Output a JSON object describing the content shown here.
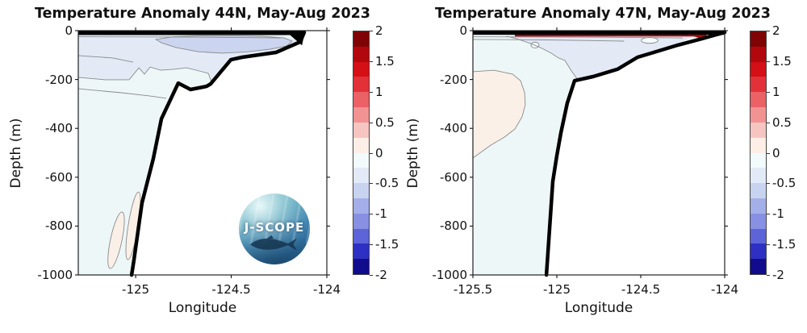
{
  "figure": {
    "background": "#ffffff"
  },
  "colorbar": {
    "tick_labels": [
      "2",
      "1.5",
      "1",
      "0.5",
      "0",
      "-0.5",
      "-1",
      "-1.5",
      "-2"
    ],
    "tick_values": [
      2,
      1.5,
      1,
      0.5,
      0,
      -0.5,
      -1,
      -1.5,
      -2
    ],
    "range": [
      -2,
      2
    ],
    "segment_colors_top_to_bottom": [
      "#7f0405",
      "#b3070e",
      "#d50f16",
      "#e23138",
      "#ea6166",
      "#f29393",
      "#f7c5c1",
      "#fdefe8",
      "#f2fafc",
      "#e2eaf7",
      "#c8d3f0",
      "#a4afe9",
      "#8790e2",
      "#5d64d7",
      "#2d30c2",
      "#110c8c"
    ],
    "outline_color": "#444444"
  },
  "panels": [
    {
      "title": "Temperature Anomaly 44N, May-Aug 2023",
      "xlabel": "Longitude",
      "ylabel": "Depth (m)",
      "logo_text": "J-SCOPE",
      "chart_data": {
        "type": "filled_contour_section",
        "xlim": [
          -125.3,
          -124.0
        ],
        "ylim": [
          -1000,
          0
        ],
        "x_ticks": [
          -125,
          -124.5,
          -124
        ],
        "x_tick_labels": [
          "-125",
          "-124.5",
          "-124"
        ],
        "y_ticks": [
          0,
          -200,
          -400,
          -600,
          -800,
          -1000
        ],
        "y_tick_labels": [
          "0",
          "-200",
          "-400",
          "-600",
          "-800",
          "-1000"
        ],
        "anomaly_units": "degC",
        "contour_interval": 0.25,
        "background_level": "0 to -0.25",
        "background_color": "#eef7f8",
        "contour_line_color": "#8a8a8a",
        "surface_band": {
          "lon_range": [
            -125.3,
            -124.115
          ],
          "depth_range": [
            0,
            -18
          ],
          "color": "#000000"
        },
        "coast_wedge": [
          [
            -124.215,
            -3
          ],
          [
            -124.115,
            -3
          ],
          [
            -124.13,
            -60
          ]
        ],
        "bathymetry_profile": [
          [
            -124.118,
            -7
          ],
          [
            -124.139,
            -46
          ],
          [
            -124.266,
            -89
          ],
          [
            -124.443,
            -109
          ],
          [
            -124.502,
            -119
          ],
          [
            -124.608,
            -218
          ],
          [
            -124.629,
            -228
          ],
          [
            -124.713,
            -241
          ],
          [
            -124.777,
            -215
          ],
          [
            -124.819,
            -284
          ],
          [
            -124.865,
            -360
          ],
          [
            -124.908,
            -525
          ],
          [
            -124.967,
            -706
          ],
          [
            -125.009,
            -941
          ],
          [
            -125.021,
            -1000
          ]
        ],
        "regions": [
          {
            "name": "upper cool band",
            "level": "-0.25 to -0.5",
            "color": "#e3eaf6",
            "outline": false,
            "polygon": [
              [
                -125.3,
                -20
              ],
              [
                -124.232,
                -20
              ],
              [
                -124.139,
                -46
              ],
              [
                -124.266,
                -89
              ],
              [
                -124.443,
                -109
              ],
              [
                -124.502,
                -119
              ],
              [
                -124.603,
                -218
              ],
              [
                -124.62,
                -175
              ],
              [
                -124.667,
                -165
              ],
              [
                -124.734,
                -152
              ],
              [
                -124.802,
                -158
              ],
              [
                -124.869,
                -162
              ],
              [
                -124.924,
                -149
              ],
              [
                -124.954,
                -178
              ],
              [
                -124.983,
                -152
              ],
              [
                -125.034,
                -201
              ],
              [
                -125.161,
                -201
              ],
              [
                -125.3,
                -191
              ]
            ]
          },
          {
            "name": "subsurface cool patch",
            "level": "-0.5 to -0.75",
            "color": "#ccd5ef",
            "outline": true,
            "polygon": [
              [
                -124.895,
                -36
              ],
              [
                -124.802,
                -25
              ],
              [
                -124.654,
                -21
              ],
              [
                -124.486,
                -21
              ],
              [
                -124.338,
                -23
              ],
              [
                -124.224,
                -30
              ],
              [
                -124.182,
                -43
              ],
              [
                -124.211,
                -63
              ],
              [
                -124.296,
                -76
              ],
              [
                -124.422,
                -87
              ],
              [
                -124.549,
                -92
              ],
              [
                -124.675,
                -86
              ],
              [
                -124.789,
                -69
              ],
              [
                -124.865,
                -50
              ]
            ]
          }
        ],
        "ellipses": [
          {
            "name": "deep warm blob west",
            "level": "0 to 0.25",
            "fill": "#faf0e7",
            "center": [
              -125.102,
              -858
            ],
            "rx_lon": 0.03,
            "ry_m": 118,
            "rotate_deg": 12
          },
          {
            "name": "deep warm blob east",
            "level": "0 to 0.25",
            "fill": "#faf0e7",
            "center": [
              -125.013,
              -799
            ],
            "rx_lon": 0.026,
            "ry_m": 140,
            "rotate_deg": 9
          }
        ],
        "contour_lines": [
          {
            "points": [
              [
                -125.3,
                -25
              ],
              [
                -124.739,
                -26
              ],
              [
                -124.24,
                -30
              ]
            ]
          },
          {
            "points": [
              [
                -125.3,
                -102
              ],
              [
                -125.119,
                -112
              ],
              [
                -125.013,
                -129
              ]
            ]
          },
          {
            "points": [
              [
                -125.3,
                -238
              ],
              [
                -125.076,
                -254
              ],
              [
                -124.928,
                -267
              ],
              [
                -124.84,
                -277
              ]
            ]
          },
          {
            "points": [
              [
                -125.3,
                -191
              ],
              [
                -125.161,
                -201
              ],
              [
                -125.034,
                -201
              ],
              [
                -124.983,
                -152
              ],
              [
                -124.954,
                -178
              ],
              [
                -124.924,
                -149
              ],
              [
                -124.869,
                -162
              ],
              [
                -124.802,
                -158
              ],
              [
                -124.734,
                -152
              ],
              [
                -124.667,
                -165
              ],
              [
                -124.62,
                -175
              ],
              [
                -124.603,
                -210
              ]
            ]
          }
        ]
      }
    },
    {
      "title": "Temperature Anomaly 47N, May-Aug 2023",
      "xlabel": "Longitude",
      "ylabel": "Depth (m)",
      "chart_data": {
        "type": "filled_contour_section",
        "xlim": [
          -125.5,
          -124.0
        ],
        "ylim": [
          -1000,
          0
        ],
        "x_ticks": [
          -125.5,
          -125,
          -124.5,
          -124
        ],
        "x_tick_labels": [
          "-125.5",
          "-125",
          "-124.5",
          "-124"
        ],
        "y_ticks": [
          0,
          -200,
          -400,
          -600,
          -800,
          -1000
        ],
        "y_tick_labels": [
          "0",
          "-200",
          "-400",
          "-600",
          "-800",
          "-1000"
        ],
        "anomaly_units": "degC",
        "contour_interval": 0.25,
        "background_level": "0 to -0.25",
        "background_color": "#eef7f8",
        "contour_line_color": "#8a8a8a",
        "surface_band": {
          "lon_range": [
            -125.5,
            -124.0
          ],
          "depth_range": [
            0,
            -17
          ],
          "color": "#000000"
        },
        "surface_red_sliver": {
          "lon_range": [
            -125.25,
            -124.11
          ],
          "depth_range": [
            -10,
            -24
          ],
          "color": "#a50e13"
        },
        "red_wedge": [
          [
            -124.22,
            -16
          ],
          [
            -124.105,
            -18
          ],
          [
            -124.14,
            -33
          ]
        ],
        "bathymetry_profile": [
          [
            -124.0,
            -7
          ],
          [
            -124.135,
            -33
          ],
          [
            -124.279,
            -59
          ],
          [
            -124.423,
            -89
          ],
          [
            -124.519,
            -109
          ],
          [
            -124.639,
            -158
          ],
          [
            -124.784,
            -188
          ],
          [
            -124.894,
            -205
          ],
          [
            -124.938,
            -297
          ],
          [
            -124.976,
            -419
          ],
          [
            -125.0,
            -512
          ],
          [
            -125.024,
            -617
          ],
          [
            -125.062,
            -1000
          ]
        ],
        "regions": [
          {
            "name": "upper cool band",
            "level": "-0.25 to -0.5",
            "color": "#e3eaf6",
            "outline": false,
            "polygon": [
              [
                -125.346,
                -20
              ],
              [
                -124.192,
                -20
              ],
              [
                -124.279,
                -59
              ],
              [
                -124.423,
                -89
              ],
              [
                -124.519,
                -109
              ],
              [
                -124.639,
                -158
              ],
              [
                -124.784,
                -188
              ],
              [
                -124.875,
                -201
              ],
              [
                -124.913,
                -165
              ],
              [
                -124.952,
                -122
              ],
              [
                -124.99,
                -112
              ],
              [
                -125.034,
                -92
              ],
              [
                -125.087,
                -73
              ],
              [
                -125.154,
                -53
              ],
              [
                -125.24,
                -33
              ],
              [
                -125.298,
                -23
              ]
            ]
          },
          {
            "name": "offshore deep warm pool",
            "level": "0 to 0.25",
            "color": "#faf0e7",
            "outline": false,
            "polygon": [
              [
                -125.5,
                -168
              ],
              [
                -125.375,
                -162
              ],
              [
                -125.264,
                -178
              ],
              [
                -125.216,
                -205
              ],
              [
                -125.192,
                -254
              ],
              [
                -125.188,
                -304
              ],
              [
                -125.207,
                -353
              ],
              [
                -125.25,
                -403
              ],
              [
                -125.313,
                -436
              ],
              [
                -125.394,
                -469
              ],
              [
                -125.481,
                -512
              ],
              [
                -125.5,
                -521
              ]
            ]
          }
        ],
        "ellipses": [
          {
            "name": "small closed contour west",
            "level": "0",
            "fill": "#f2f9fb",
            "center": [
              -125.13,
              -59
            ],
            "rx_lon": 0.024,
            "ry_m": 12,
            "rotate_deg": 0
          },
          {
            "name": "small closed contour east",
            "level": "0",
            "fill": "#f6fbfd",
            "center": [
              -124.447,
              -40
            ],
            "rx_lon": 0.05,
            "ry_m": 12,
            "rotate_deg": 0
          }
        ],
        "contour_lines": [
          {
            "points": [
              [
                -125.5,
                -25
              ],
              [
                -124.7,
                -27
              ],
              [
                -124.25,
                -30
              ]
            ]
          },
          {
            "points": [
              [
                -125.5,
                -36
              ],
              [
                -125.05,
                -38
              ],
              [
                -124.6,
                -43
              ]
            ]
          },
          {
            "points": [
              [
                -125.298,
                -23
              ],
              [
                -125.24,
                -33
              ],
              [
                -125.154,
                -53
              ],
              [
                -125.087,
                -73
              ],
              [
                -125.034,
                -92
              ],
              [
                -124.99,
                -112
              ],
              [
                -124.952,
                -122
              ],
              [
                -124.913,
                -165
              ],
              [
                -124.875,
                -201
              ]
            ]
          },
          {
            "points": [
              [
                -125.5,
                -168
              ],
              [
                -125.375,
                -162
              ],
              [
                -125.264,
                -178
              ],
              [
                -125.216,
                -205
              ],
              [
                -125.192,
                -254
              ],
              [
                -125.188,
                -304
              ],
              [
                -125.207,
                -353
              ],
              [
                -125.25,
                -403
              ],
              [
                -125.313,
                -436
              ],
              [
                -125.394,
                -469
              ],
              [
                -125.481,
                -512
              ],
              [
                -125.5,
                -521
              ]
            ]
          }
        ]
      }
    }
  ]
}
